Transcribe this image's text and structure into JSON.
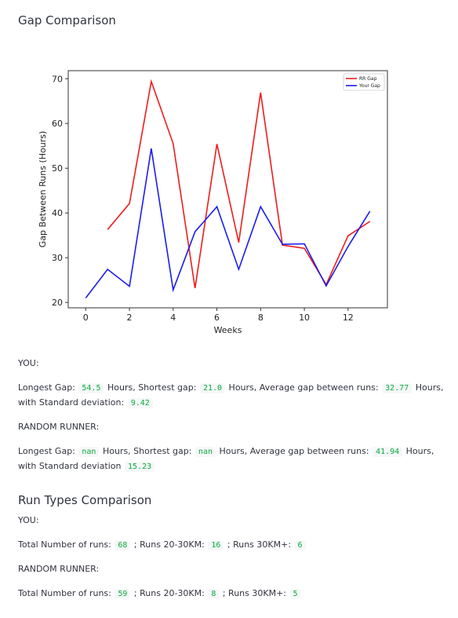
{
  "gap_section": {
    "title": "Gap Comparison",
    "you_label": "YOU:",
    "you": {
      "longest_label": "Longest Gap:",
      "longest": "54.5",
      "shortest_label": "Hours, Shortest gap:",
      "shortest": "21.0",
      "avg_label": "Hours, Average gap between runs:",
      "avg": "32.77",
      "hours_suffix": "Hours,",
      "std_label": "with Standard deviation:",
      "std": "9.42"
    },
    "rr_label": "RANDOM RUNNER:",
    "rr": {
      "longest_label": "Longest Gap:",
      "longest": "nan",
      "shortest_label": "Hours, Shortest gap:",
      "shortest": "nan",
      "avg_label": "Hours, Average gap between runs:",
      "avg": "41.94",
      "hours_suffix": "Hours,",
      "std_label": "with Standard deviation",
      "std": "15.23"
    }
  },
  "run_types_section": {
    "title": "Run Types Comparison",
    "you_label": "YOU:",
    "you": {
      "total_label": "Total Number of runs:",
      "total": "68",
      "r20_label": "; Runs 20-30KM:",
      "r20": "16",
      "r30_label": "; Runs 30KM+:",
      "r30": "6"
    },
    "rr_label": "RANDOM RUNNER:",
    "rr": {
      "total_label": "Total Number of runs:",
      "total": "59",
      "r20_label": "; Runs 20-30KM:",
      "r20": "8",
      "r30_label": "; Runs 30KM+:",
      "r30": "5"
    }
  },
  "chart_data": {
    "type": "line",
    "xlabel": "Weeks",
    "ylabel": "Gap Between Runs (Hours)",
    "xlim": [
      -0.8,
      13.8
    ],
    "ylim": [
      18.8,
      71.8
    ],
    "xticks": [
      0,
      2,
      4,
      6,
      8,
      10,
      12
    ],
    "yticks": [
      20,
      30,
      40,
      50,
      60,
      70
    ],
    "grid": false,
    "legend_position": "top-right",
    "series": [
      {
        "name": "RR Gap",
        "color": "#ee1c1c",
        "x": [
          1,
          2,
          3,
          4,
          5,
          6,
          7,
          8,
          9,
          10,
          11,
          12,
          13
        ],
        "values": [
          36.3,
          42.1,
          69.4,
          55.5,
          23.2,
          55.4,
          33.4,
          66.9,
          32.8,
          32.1,
          24.0,
          34.9,
          38.1
        ]
      },
      {
        "name": "Your Gap",
        "color": "#1c1cee",
        "x": [
          0,
          1,
          2,
          3,
          4,
          5,
          6,
          7,
          8,
          9,
          10,
          11,
          12,
          13
        ],
        "values": [
          21.0,
          27.4,
          23.6,
          54.4,
          22.8,
          35.8,
          41.4,
          27.4,
          41.4,
          33.0,
          33.1,
          23.7,
          32.5,
          40.4
        ]
      }
    ]
  }
}
